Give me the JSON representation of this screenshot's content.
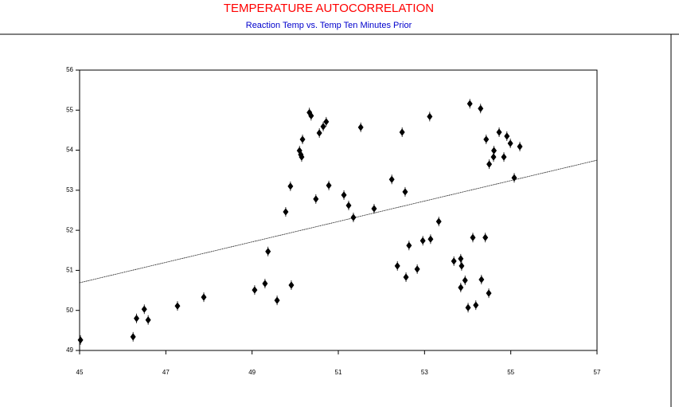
{
  "chart_data": {
    "type": "scatter",
    "title": "TEMPERATURE AUTOCORRELATION",
    "subtitle": "Reaction Temp vs. Temp Ten Minutes Prior",
    "title_color": "#ff0000",
    "subtitle_color": "#0000cc",
    "color": "#000000",
    "x": [
      45.02,
      46.24,
      46.32,
      46.5,
      46.59,
      47.27,
      47.88,
      49.06,
      49.3,
      49.37,
      49.58,
      49.78,
      49.89,
      49.91,
      50.1,
      50.13,
      50.17,
      50.15,
      50.33,
      50.37,
      50.48,
      50.56,
      50.65,
      50.72,
      50.78,
      51.13,
      51.24,
      51.35,
      51.52,
      51.83,
      52.24,
      52.37,
      52.48,
      52.55,
      52.57,
      52.64,
      52.83,
      52.96,
      53.12,
      53.14,
      53.33,
      53.68,
      53.84,
      53.84,
      53.86,
      53.94,
      54.01,
      54.05,
      54.12,
      54.19,
      54.3,
      54.32,
      54.41,
      54.43,
      54.49,
      54.5,
      54.6,
      54.61,
      54.73,
      54.84,
      54.91,
      54.99,
      55.08,
      55.21
    ],
    "values": [
      49.26,
      49.34,
      49.8,
      50.03,
      49.76,
      50.11,
      50.33,
      50.51,
      50.67,
      51.47,
      50.25,
      52.46,
      53.1,
      50.63,
      53.99,
      53.89,
      54.27,
      53.83,
      54.94,
      54.86,
      52.78,
      54.43,
      54.59,
      54.71,
      53.12,
      52.88,
      52.62,
      52.32,
      54.57,
      52.54,
      53.27,
      51.11,
      54.45,
      52.96,
      50.83,
      51.62,
      51.03,
      51.74,
      54.84,
      51.78,
      52.22,
      51.23,
      51.29,
      50.57,
      51.11,
      50.75,
      50.07,
      55.16,
      51.82,
      50.13,
      55.04,
      50.77,
      51.82,
      54.27,
      50.43,
      53.65,
      53.83,
      53.99,
      54.45,
      53.83,
      54.35,
      54.17,
      53.31,
      54.09
    ],
    "trend": {
      "x": [
        45,
        57
      ],
      "values": [
        50.69,
        53.75
      ]
    },
    "xlim": [
      45,
      57
    ],
    "xticks": [
      45,
      47,
      49,
      51,
      53,
      55,
      57
    ],
    "ylim": [
      49,
      56
    ],
    "yticks": [
      49,
      50,
      51,
      52,
      53,
      54,
      55,
      56
    ]
  }
}
